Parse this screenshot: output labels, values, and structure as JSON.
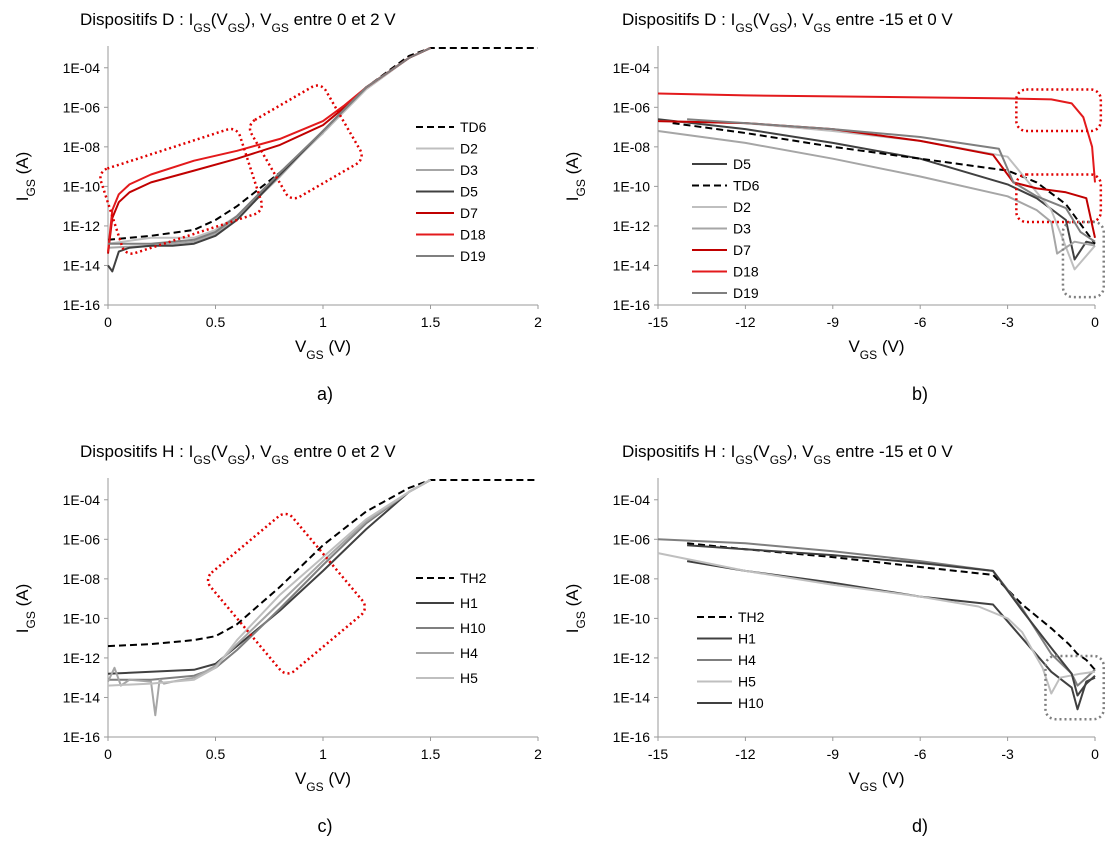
{
  "panels": [
    {
      "id": "a",
      "title": "Dispositifs D : I<sub>GS</sub>(V<sub>GS</sub>), V<sub>GS</sub> entre 0 et 2 V",
      "caption": "a)"
    },
    {
      "id": "b",
      "title": "Dispositifs D : I<sub>GS</sub>(V<sub>GS</sub>), V<sub>GS</sub> entre -15 et 0 V",
      "caption": "b)"
    },
    {
      "id": "c",
      "title": "Dispositifs H : I<sub>GS</sub>(V<sub>GS</sub>), V<sub>GS</sub> entre 0 et 2 V",
      "caption": "c)"
    },
    {
      "id": "d",
      "title": "Dispositifs H : I<sub>GS</sub>(V<sub>GS</sub>), V<sub>GS</sub> entre -15 et 0 V",
      "caption": "d)"
    }
  ],
  "colors": {
    "black": "#000000",
    "dark": "#404040",
    "mid": "#7f7f7f",
    "light": "#a6a6a6",
    "lighter": "#bfbfbf",
    "red": "#c00000",
    "red_bright": "#e31a1c",
    "highlight_red": "#e00000",
    "highlight_gray": "#7f7f7f"
  },
  "chart_data": [
    {
      "type": "line",
      "panel": "a",
      "xlabel": "V<sub>GS</sub> (V)",
      "ylabel": "I<sub>GS</sub> (A)",
      "xlim": [
        0,
        2
      ],
      "xticks": [
        "0",
        "0.5",
        "1",
        "1.5",
        "2"
      ],
      "ylim_log10": [
        -16,
        -3
      ],
      "yticks": [
        "1E-04",
        "1E-06",
        "1E-08",
        "1E-10",
        "1E-12",
        "1E-14",
        "1E-16"
      ],
      "legend": "right",
      "series": [
        {
          "name": "TD6",
          "color": "black",
          "dash": true,
          "x": [
            0,
            0.2,
            0.4,
            0.5,
            0.6,
            0.8,
            1.0,
            1.2,
            1.4,
            1.5,
            2.0
          ],
          "y": [
            -12.7,
            -12.5,
            -12.2,
            -11.7,
            -11,
            -9.3,
            -7.3,
            -5,
            -3.4,
            -3,
            -3
          ]
        },
        {
          "name": "D2",
          "color": "lighter",
          "x": [
            0,
            0.2,
            0.4,
            0.5,
            0.6,
            0.8,
            1.0,
            1.2,
            1.4,
            1.5
          ],
          "y": [
            -12.9,
            -12.6,
            -12.6,
            -12.2,
            -11.5,
            -9.4,
            -7.3,
            -5.1,
            -3.5,
            -3
          ]
        },
        {
          "name": "D3",
          "color": "light",
          "x": [
            0,
            0.2,
            0.4,
            0.5,
            0.6,
            0.8,
            1.0,
            1.2,
            1.4,
            1.5
          ],
          "y": [
            -13.1,
            -13,
            -12.8,
            -12.4,
            -11.6,
            -9.5,
            -7.2,
            -5,
            -3.5,
            -3
          ]
        },
        {
          "name": "D5",
          "color": "dark",
          "x": [
            0,
            0.02,
            0.05,
            0.1,
            0.2,
            0.3,
            0.4,
            0.5,
            0.6,
            0.8,
            1.0,
            1.2,
            1.4,
            1.5
          ],
          "y": [
            -14,
            -14.3,
            -13.3,
            -13.1,
            -13,
            -13,
            -12.9,
            -12.5,
            -11.7,
            -9.4,
            -7.2,
            -5,
            -3.5,
            -3
          ]
        },
        {
          "name": "D7",
          "color": "red",
          "x": [
            0,
            0.02,
            0.05,
            0.1,
            0.2,
            0.4,
            0.6,
            0.8,
            1.0,
            1.1,
            1.2,
            1.4,
            1.5
          ],
          "y": [
            -13.4,
            -11.6,
            -10.8,
            -10.3,
            -9.8,
            -9.2,
            -8.6,
            -7.9,
            -6.9,
            -6,
            -5,
            -3.5,
            -3
          ]
        },
        {
          "name": "D18",
          "color": "red_bright",
          "x": [
            0,
            0.02,
            0.05,
            0.1,
            0.2,
            0.4,
            0.6,
            0.8,
            1.0,
            1.1,
            1.2,
            1.4,
            1.5
          ],
          "y": [
            -13.3,
            -11.2,
            -10.4,
            -9.9,
            -9.4,
            -8.7,
            -8.2,
            -7.6,
            -6.7,
            -5.9,
            -5,
            -3.5,
            -3
          ]
        },
        {
          "name": "D19",
          "color": "mid",
          "x": [
            0,
            0.2,
            0.4,
            0.5,
            0.6,
            0.8,
            1.0,
            1.2,
            1.4,
            1.5
          ],
          "y": [
            -12.9,
            -12.9,
            -12.7,
            -12.3,
            -11.5,
            -9.3,
            -7.2,
            -5,
            -3.5,
            -3
          ]
        }
      ],
      "highlights": [
        {
          "color": "highlight_red",
          "x": [
            0,
            0.68
          ],
          "y": [
            -8,
            -12.5
          ],
          "tilt": -18
        },
        {
          "color": "highlight_red",
          "x": [
            0.72,
            1.12
          ],
          "y": [
            -5.5,
            -10
          ],
          "tilt": -30
        }
      ]
    },
    {
      "type": "line",
      "panel": "b",
      "xlabel": "V<sub>GS</sub> (V)",
      "ylabel": "I<sub>GS</sub> (A)",
      "xlim": [
        -15,
        0
      ],
      "xticks": [
        "-15",
        "-12",
        "-9",
        "-6",
        "-3",
        "0"
      ],
      "ylim_log10": [
        -16,
        -3
      ],
      "yticks": [
        "1E-04",
        "1E-06",
        "1E-08",
        "1E-10",
        "1E-12",
        "1E-14",
        "1E-16"
      ],
      "legend": "bottom-left",
      "series": [
        {
          "name": "D5",
          "color": "dark",
          "x": [
            -15,
            -12,
            -9,
            -6,
            -3,
            -2,
            -1,
            -0.7,
            -0.3,
            0
          ],
          "y": [
            -6.6,
            -7.1,
            -7.8,
            -8.6,
            -9.9,
            -10.6,
            -11.7,
            -13.7,
            -12.8,
            -12.9
          ]
        },
        {
          "name": "TD6",
          "color": "black",
          "dash": true,
          "x": [
            -14.5,
            -12,
            -9,
            -6,
            -3,
            -2,
            -1,
            -0.5,
            0
          ],
          "y": [
            -6.8,
            -7.3,
            -8,
            -8.6,
            -9.2,
            -9.8,
            -10.9,
            -11.9,
            -12.9
          ]
        },
        {
          "name": "D2",
          "color": "lighter",
          "x": [
            -15,
            -12,
            -9,
            -6,
            -3,
            -2,
            -1.5,
            -1.2,
            -0.7,
            0
          ],
          "y": [
            -6.7,
            -6.8,
            -7.2,
            -7.7,
            -8.5,
            -10.3,
            -11.2,
            -12.3,
            -14.2,
            -13
          ]
        },
        {
          "name": "D3",
          "color": "light",
          "x": [
            -15,
            -12,
            -9,
            -6,
            -3,
            -2,
            -1.5,
            -1.3,
            -0.7,
            0
          ],
          "y": [
            -7.2,
            -7.8,
            -8.6,
            -9.5,
            -10.5,
            -11.2,
            -11.8,
            -13.4,
            -12.8,
            -13
          ]
        },
        {
          "name": "D7",
          "color": "red",
          "x": [
            -15,
            -12,
            -9,
            -6,
            -3.5,
            -2.8,
            -2,
            -1,
            -0.3,
            0
          ],
          "y": [
            -6.7,
            -6.8,
            -7.1,
            -7.7,
            -8.4,
            -9.8,
            -10.1,
            -10.3,
            -10.6,
            -12.6
          ]
        },
        {
          "name": "D18",
          "color": "red_bright",
          "x": [
            -15,
            -12,
            -9,
            -6,
            -3,
            -1.5,
            -0.8,
            -0.4,
            -0.1,
            0
          ],
          "y": [
            -5.3,
            -5.4,
            -5.45,
            -5.5,
            -5.55,
            -5.6,
            -5.8,
            -6.5,
            -8,
            -9.8
          ]
        },
        {
          "name": "D19",
          "color": "mid",
          "x": [
            -14,
            -12,
            -9,
            -6,
            -3.3,
            -2.8,
            -2,
            -1,
            -0.5,
            0
          ],
          "y": [
            -6.6,
            -6.8,
            -7.1,
            -7.5,
            -8.1,
            -9.8,
            -10.5,
            -11.1,
            -12.3,
            -12.8
          ]
        }
      ],
      "highlights": [
        {
          "color": "highlight_red",
          "x": [
            -2.7,
            0.2
          ],
          "y": [
            -5.1,
            -7.2
          ]
        },
        {
          "color": "highlight_red",
          "x": [
            -2.7,
            0.2
          ],
          "y": [
            -9.4,
            -11.8
          ]
        },
        {
          "color": "highlight_gray",
          "x": [
            -1.1,
            0.3
          ],
          "y": [
            -11.8,
            -15.6
          ]
        }
      ]
    },
    {
      "type": "line",
      "panel": "c",
      "xlabel": "V<sub>GS</sub> (V)",
      "ylabel": "I<sub>GS</sub> (A)",
      "xlim": [
        0,
        2
      ],
      "xticks": [
        "0",
        "0.5",
        "1",
        "1.5",
        "2"
      ],
      "ylim_log10": [
        -16,
        -3
      ],
      "yticks": [
        "1E-04",
        "1E-06",
        "1E-08",
        "1E-10",
        "1E-12",
        "1E-14",
        "1E-16"
      ],
      "legend": "right",
      "series": [
        {
          "name": "TH2",
          "color": "black",
          "dash": true,
          "x": [
            0,
            0.2,
            0.4,
            0.5,
            0.6,
            0.8,
            1.0,
            1.2,
            1.4,
            1.5,
            2.0
          ],
          "y": [
            -11.4,
            -11.3,
            -11.1,
            -10.9,
            -10.3,
            -8.4,
            -6.3,
            -4.6,
            -3.4,
            -3,
            -3
          ]
        },
        {
          "name": "H1",
          "color": "dark",
          "x": [
            0,
            0.2,
            0.4,
            0.5,
            0.6,
            0.8,
            1.0,
            1.2,
            1.4,
            1.5
          ],
          "y": [
            -12.8,
            -12.7,
            -12.6,
            -12.3,
            -11.4,
            -9.6,
            -7.6,
            -5.5,
            -3.6,
            -3
          ]
        },
        {
          "name": "H10",
          "color": "mid",
          "x": [
            0,
            0.2,
            0.4,
            0.5,
            0.6,
            0.8,
            1.0,
            1.2,
            1.4,
            1.5
          ],
          "y": [
            -13.1,
            -13.1,
            -12.9,
            -12.5,
            -11.6,
            -9.5,
            -7.3,
            -5.2,
            -3.6,
            -3
          ]
        },
        {
          "name": "H4",
          "color": "light",
          "x": [
            0,
            0.03,
            0.06,
            0.1,
            0.2,
            0.22,
            0.24,
            0.26,
            0.3,
            0.4,
            0.5,
            0.6,
            0.8,
            1.0,
            1.2,
            1.4,
            1.5
          ],
          "y": [
            -13.2,
            -12.5,
            -13.4,
            -13.1,
            -13.2,
            -14.9,
            -13.1,
            -13.3,
            -13.2,
            -13,
            -12.4,
            -11.3,
            -9.2,
            -7.1,
            -5.1,
            -3.6,
            -3
          ]
        },
        {
          "name": "H5",
          "color": "lighter",
          "x": [
            0,
            0.2,
            0.4,
            0.5,
            0.6,
            0.8,
            1.0,
            1.2,
            1.4,
            1.5
          ],
          "y": [
            -13.4,
            -13.3,
            -13.1,
            -12.5,
            -11.1,
            -8.8,
            -6.9,
            -5,
            -3.6,
            -3
          ]
        }
      ],
      "highlights": [
        {
          "color": "highlight_red",
          "x": [
            0.58,
            1.08
          ],
          "y": [
            -5.5,
            -12
          ],
          "tilt": -40
        }
      ]
    },
    {
      "type": "line",
      "panel": "d",
      "xlabel": "V<sub>GS</sub> (V)",
      "ylabel": "I<sub>GS</sub> (A)",
      "xlim": [
        -15,
        0
      ],
      "xticks": [
        "-15",
        "-12",
        "-9",
        "-6",
        "-3",
        "0"
      ],
      "ylim_log10": [
        -16,
        -3
      ],
      "yticks": [
        "1E-04",
        "1E-06",
        "1E-08",
        "1E-10",
        "1E-12",
        "1E-14",
        "1E-16"
      ],
      "legend": "bottom-left",
      "series": [
        {
          "name": "TH2",
          "color": "black",
          "dash": true,
          "x": [
            -14,
            -12,
            -9,
            -6,
            -3.5,
            -2.5,
            -1.5,
            -0.9,
            -0.6,
            -0.3,
            0
          ],
          "y": [
            -6.2,
            -6.5,
            -6.9,
            -7.4,
            -7.8,
            -9.3,
            -10.5,
            -11.3,
            -11.8,
            -12.1,
            -12.6
          ]
        },
        {
          "name": "H1",
          "color": "dark",
          "x": [
            -14,
            -12,
            -9,
            -6,
            -3.5,
            -2.5,
            -1.5,
            -0.8,
            -0.6,
            -0.3,
            0
          ],
          "y": [
            -7.1,
            -7.6,
            -8.2,
            -8.9,
            -9.3,
            -11,
            -12.7,
            -13.5,
            -14.6,
            -13.2,
            -13
          ]
        },
        {
          "name": "H4",
          "color": "mid",
          "x": [
            -15,
            -12,
            -9,
            -6,
            -3.5,
            -2.5,
            -1.5,
            -0.8,
            -0.6,
            -0.3,
            0
          ],
          "y": [
            -6,
            -6.2,
            -6.6,
            -7.1,
            -7.6,
            -9.5,
            -11.8,
            -12.8,
            -13.4,
            -13,
            -12.6
          ]
        },
        {
          "name": "H5",
          "color": "lighter",
          "x": [
            -15,
            -12,
            -9,
            -6,
            -4,
            -3,
            -2.5,
            -1.8,
            -1.5,
            -1.2,
            -0.5,
            0
          ],
          "y": [
            -6.7,
            -7.6,
            -8.3,
            -8.9,
            -9.4,
            -10,
            -10.7,
            -12.5,
            -13.8,
            -13,
            -12.8,
            -12.7
          ]
        },
        {
          "name": "H10",
          "color": "dark",
          "x": [
            -14,
            -12,
            -9,
            -6,
            -3.5,
            -2.5,
            -1.5,
            -0.8,
            -0.6,
            -0.3,
            0
          ],
          "y": [
            -6.3,
            -6.5,
            -6.8,
            -7.2,
            -7.6,
            -9.6,
            -11.5,
            -12.8,
            -13.9,
            -13.3,
            -12.9
          ]
        }
      ],
      "highlights": [
        {
          "color": "highlight_gray",
          "x": [
            -1.7,
            0.3
          ],
          "y": [
            -11.9,
            -15.1
          ]
        }
      ]
    }
  ]
}
